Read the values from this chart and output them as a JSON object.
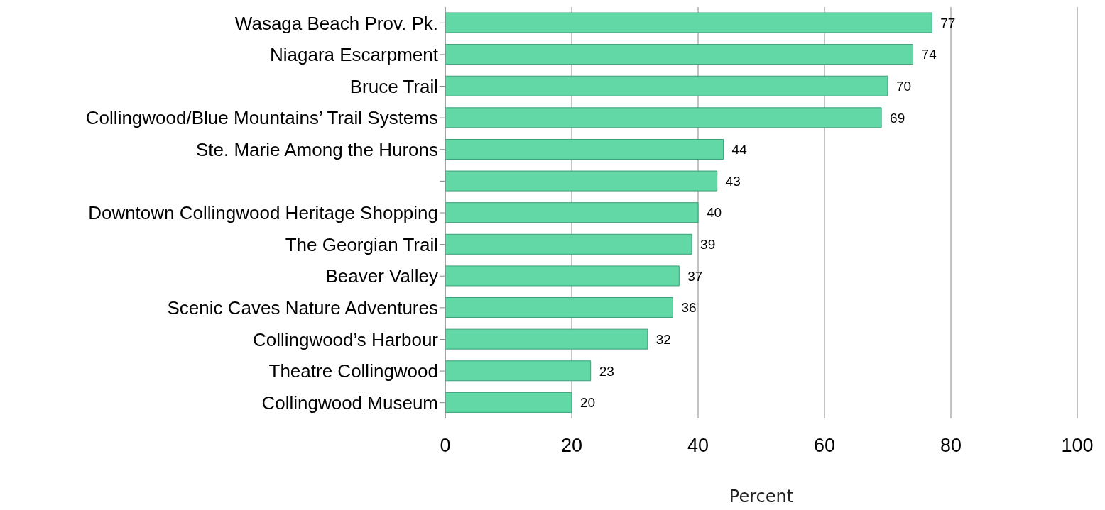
{
  "chart_data": {
    "type": "bar",
    "orientation": "horizontal",
    "xlabel": "Percent",
    "categories": [
      "Wasaga Beach Prov. Pk.",
      "Niagara Escarpment",
      "Bruce Trail",
      "Collingwood/Blue Mountains’ Trail Systems",
      "Ste. Marie Among the Hurons",
      null,
      "Downtown Collingwood Heritage Shopping",
      "The Georgian Trail",
      "Beaver Valley",
      "Scenic Caves Nature Adventures",
      "Collingwood’s Harbour",
      "Theatre Collingwood",
      "Collingwood Museum"
    ],
    "values": [
      77,
      74,
      70,
      69,
      44,
      43,
      40,
      39,
      37,
      36,
      32,
      23,
      20
    ],
    "color": "#62d8a6",
    "xlim": [
      0,
      100
    ],
    "xticks": [
      0,
      20,
      40,
      60,
      80,
      100
    ],
    "grid": "x",
    "data_labels": true
  }
}
